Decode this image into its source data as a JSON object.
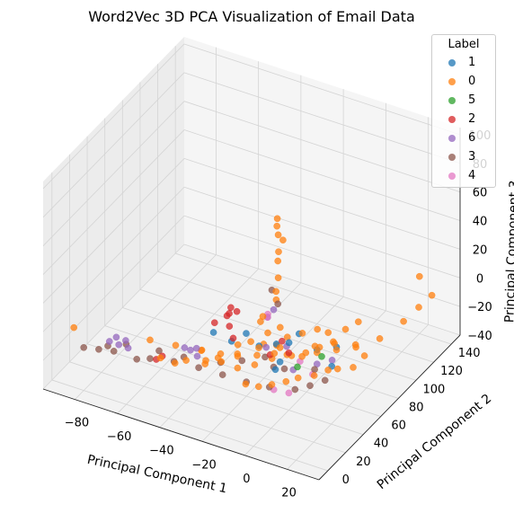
{
  "chart_data": {
    "type": "scatter",
    "projection": "3d",
    "title": "Word2Vec 3D PCA Visualization of Email Data",
    "xlabel": "Principal Component 1",
    "ylabel": "Principal Component 2",
    "zlabel": "Principal Component 3",
    "xticks": [
      -80,
      -60,
      -40,
      -20,
      0,
      20
    ],
    "yticks": [
      0,
      20,
      40,
      60,
      80,
      100,
      120,
      140
    ],
    "zticks": [
      -40,
      -20,
      0,
      20,
      40,
      60,
      80,
      100
    ],
    "xlim": [
      -95,
      35
    ],
    "ylim": [
      -10,
      150
    ],
    "zlim": [
      -40,
      105
    ],
    "grid": true,
    "legend": {
      "title": "Label",
      "placement": "top-right",
      "entries": [
        "1",
        "0",
        "5",
        "2",
        "6",
        "3",
        "4"
      ]
    },
    "series": [
      {
        "name": "1",
        "color": "#1f77b4",
        "points": [
          [
            -22,
            28,
            5
          ],
          [
            -18,
            35,
            8
          ],
          [
            -10,
            50,
            -5
          ],
          [
            -2,
            45,
            3
          ],
          [
            5,
            60,
            -8
          ],
          [
            10,
            70,
            -10
          ],
          [
            -28,
            22,
            12
          ],
          [
            0,
            30,
            0
          ],
          [
            -14,
            40,
            -2
          ],
          [
            14,
            55,
            -12
          ],
          [
            -6,
            66,
            -6
          ],
          [
            2,
            20,
            2
          ]
        ]
      },
      {
        "name": "0",
        "color": "#ff7f0e",
        "points": [
          [
            -88,
            8,
            -5
          ],
          [
            -55,
            15,
            -2
          ],
          [
            -45,
            20,
            -4
          ],
          [
            -35,
            25,
            -6
          ],
          [
            -28,
            30,
            -8
          ],
          [
            -22,
            35,
            -10
          ],
          [
            -15,
            40,
            -9
          ],
          [
            -10,
            45,
            -12
          ],
          [
            -5,
            50,
            -10
          ],
          [
            0,
            55,
            -12
          ],
          [
            5,
            60,
            -10
          ],
          [
            10,
            70,
            -12
          ],
          [
            15,
            80,
            -14
          ],
          [
            20,
            95,
            -15
          ],
          [
            25,
            110,
            -10
          ],
          [
            28,
            120,
            -5
          ],
          [
            30,
            130,
            -2
          ],
          [
            20,
            140,
            0
          ],
          [
            -5,
            40,
            50
          ],
          [
            -6,
            42,
            60
          ],
          [
            -4,
            38,
            70
          ],
          [
            -5,
            40,
            80
          ],
          [
            -6,
            41,
            85
          ],
          [
            -5,
            39,
            92
          ],
          [
            -4,
            43,
            75
          ],
          [
            -6,
            40,
            40
          ],
          [
            -8,
            45,
            30
          ],
          [
            -2,
            35,
            20
          ],
          [
            0,
            30,
            10
          ],
          [
            -10,
            30,
            5
          ],
          [
            -18,
            25,
            0
          ],
          [
            -25,
            20,
            -3
          ],
          [
            -30,
            18,
            -6
          ],
          [
            -38,
            15,
            -8
          ],
          [
            -42,
            12,
            -10
          ],
          [
            -48,
            10,
            -8
          ],
          [
            -12,
            20,
            -15
          ],
          [
            -8,
            25,
            -18
          ],
          [
            -3,
            28,
            -16
          ],
          [
            2,
            32,
            -14
          ],
          [
            6,
            36,
            -12
          ],
          [
            12,
            40,
            -10
          ],
          [
            16,
            46,
            -8
          ],
          [
            18,
            52,
            -10
          ],
          [
            22,
            60,
            -12
          ],
          [
            24,
            68,
            -8
          ],
          [
            -20,
            45,
            -5
          ],
          [
            -16,
            50,
            -8
          ],
          [
            -12,
            55,
            -10
          ],
          [
            -9,
            60,
            -6
          ],
          [
            -4,
            65,
            -4
          ],
          [
            1,
            70,
            -2
          ],
          [
            4,
            75,
            -6
          ],
          [
            8,
            85,
            -8
          ],
          [
            12,
            90,
            -4
          ],
          [
            -14,
            35,
            -12
          ],
          [
            -20,
            30,
            -14
          ],
          [
            -26,
            26,
            -10
          ],
          [
            -32,
            22,
            -12
          ],
          [
            -36,
            28,
            -8
          ],
          [
            -24,
            40,
            -6
          ],
          [
            -2,
            48,
            -8
          ],
          [
            3,
            52,
            -6
          ],
          [
            7,
            58,
            -4
          ],
          [
            11,
            64,
            -2
          ],
          [
            -7,
            33,
            15
          ],
          [
            -11,
            37,
            22
          ],
          [
            -15,
            44,
            12
          ],
          [
            -1,
            26,
            8
          ],
          [
            9,
            48,
            4
          ],
          [
            14,
            58,
            2
          ],
          [
            19,
            70,
            -4
          ]
        ]
      },
      {
        "name": "5",
        "color": "#2ca02c",
        "points": [
          [
            2,
            45,
            -12
          ],
          [
            8,
            58,
            -10
          ]
        ]
      },
      {
        "name": "2",
        "color": "#d62728",
        "points": [
          [
            -25,
            30,
            20
          ],
          [
            -24,
            32,
            25
          ],
          [
            -23,
            28,
            15
          ],
          [
            -22,
            34,
            22
          ],
          [
            -50,
            10,
            -10
          ],
          [
            -48,
            12,
            -8
          ],
          [
            -20,
            25,
            10
          ],
          [
            -26,
            35,
            18
          ],
          [
            0,
            40,
            0
          ],
          [
            -4,
            42,
            5
          ],
          [
            -8,
            38,
            -4
          ],
          [
            -30,
            28,
            14
          ]
        ]
      },
      {
        "name": "6",
        "color": "#9467bd",
        "points": [
          [
            -70,
            5,
            -4
          ],
          [
            -68,
            8,
            -2
          ],
          [
            -66,
            6,
            -5
          ],
          [
            -64,
            9,
            -3
          ],
          [
            -62,
            7,
            -6
          ],
          [
            -40,
            18,
            -2
          ],
          [
            -38,
            20,
            -4
          ],
          [
            -36,
            22,
            -3
          ],
          [
            -34,
            18,
            -5
          ],
          [
            -10,
            40,
            20
          ],
          [
            -8,
            42,
            25
          ],
          [
            5,
            60,
            -18
          ],
          [
            0,
            45,
            -15
          ],
          [
            10,
            65,
            -16
          ],
          [
            -14,
            48,
            -8
          ],
          [
            -6,
            52,
            -6
          ]
        ]
      },
      {
        "name": "3",
        "color": "#8c564b",
        "points": [
          [
            -80,
            0,
            -10
          ],
          [
            -75,
            5,
            -12
          ],
          [
            -70,
            10,
            -14
          ],
          [
            -60,
            12,
            -16
          ],
          [
            -55,
            15,
            -15
          ],
          [
            -45,
            18,
            -14
          ],
          [
            -35,
            22,
            -16
          ],
          [
            -25,
            25,
            -18
          ],
          [
            -15,
            28,
            -20
          ],
          [
            -5,
            30,
            -20
          ],
          [
            5,
            35,
            -20
          ],
          [
            10,
            40,
            -18
          ],
          [
            15,
            45,
            -15
          ],
          [
            -8,
            40,
            40
          ],
          [
            -6,
            42,
            30
          ],
          [
            -3,
            30,
            -5
          ],
          [
            0,
            35,
            -8
          ],
          [
            -12,
            42,
            -10
          ],
          [
            -20,
            35,
            -12
          ],
          [
            -28,
            30,
            -14
          ],
          [
            -42,
            22,
            -12
          ],
          [
            -52,
            18,
            -10
          ],
          [
            -65,
            12,
            -8
          ],
          [
            -72,
            8,
            -10
          ],
          [
            8,
            50,
            -14
          ]
        ]
      },
      {
        "name": "4",
        "color": "#e377c2",
        "points": [
          [
            -10,
            40,
            20
          ],
          [
            -5,
            35,
            -25
          ],
          [
            0,
            40,
            -28
          ],
          [
            5,
            55,
            -22
          ],
          [
            -12,
            45,
            18
          ],
          [
            -3,
            60,
            -20
          ]
        ]
      }
    ]
  }
}
